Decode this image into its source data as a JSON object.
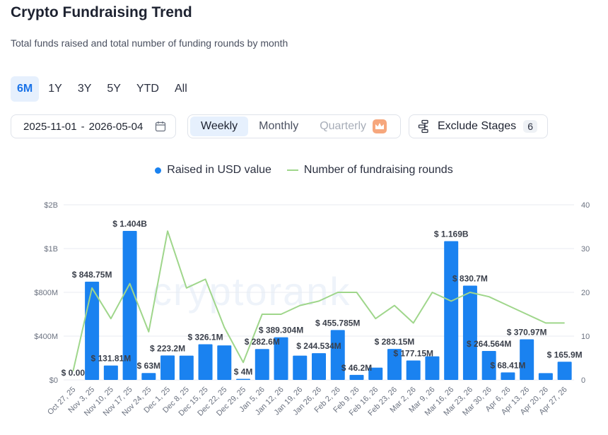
{
  "header": {
    "title": "Crypto Fundraising Trend",
    "subtitle": "Total funds raised and total number of funding rounds by month"
  },
  "range_tabs": [
    "6M",
    "1Y",
    "3Y",
    "5Y",
    "YTD",
    "All"
  ],
  "active_range": "6M",
  "date_range": {
    "start": "2025-11-01",
    "separator": "-",
    "end": "2026-05-04"
  },
  "period_tabs": {
    "weekly": "Weekly",
    "monthly": "Monthly",
    "quarterly": "Quarterly"
  },
  "active_period": "Weekly",
  "exclude": {
    "label": "Exclude Stages",
    "count": "6"
  },
  "legend": {
    "raised": "Raised in USD value",
    "rounds": "Number of fundraising rounds"
  },
  "watermark": "cryptorank",
  "colors": {
    "bar": "#1a82f0",
    "line": "#9fd68b",
    "accent": "#1a73e8",
    "grid": "#e8ebf0"
  },
  "chart_data": {
    "type": "bar",
    "categories": [
      "Oct 27, 25",
      "Nov 3, 25",
      "Nov 10, 25",
      "Nov 17, 25",
      "Nov 24, 25",
      "Dec 1, 25",
      "Dec 8, 25",
      "Dec 15, 25",
      "Dec 22, 25",
      "Dec 29, 25",
      "Jan 5, 26",
      "Jan 12, 26",
      "Jan 19, 26",
      "Jan 26, 26",
      "Feb 2, 26",
      "Feb 9, 26",
      "Feb 16, 26",
      "Feb 23, 26",
      "Mar 2, 26",
      "Mar 9, 26",
      "Mar 16, 26",
      "Mar 23, 26",
      "Mar 30, 26",
      "Apr 6, 26",
      "Apr 13, 26",
      "Apr 20, 26",
      "Apr 27, 26"
    ],
    "left_ticks": [
      "$0",
      "$400M",
      "$800M",
      "$1B",
      "$2B"
    ],
    "right_ticks": [
      "0",
      "10",
      "20",
      "30",
      "40"
    ],
    "series": [
      {
        "name": "Raised in USD value",
        "type": "bar",
        "values": [
          0,
          848.75,
          131.81,
          1404,
          63,
          223.2,
          222,
          326.1,
          315,
          4,
          282.6,
          389.304,
          222,
          244.534,
          455.785,
          46.2,
          112,
          283.15,
          177.15,
          215,
          1169,
          830.7,
          264.564,
          68.41,
          370.97,
          62,
          165.9
        ],
        "labels": [
          "$ 0.00",
          "$ 848.75M",
          "$ 131.81M",
          "$ 1.404B",
          "$ 63M",
          "$ 223.2M",
          "",
          "$ 326.1M",
          "",
          "$ 4M",
          "$ 282.6M",
          "$ 389.304M",
          "",
          "$ 244.534M",
          "$ 455.785M",
          "$ 46.2M",
          "",
          "$ 283.15M",
          "$ 177.15M",
          "",
          "$ 1.169B",
          "$ 830.7M",
          "$ 264.564M",
          "$ 68.41M",
          "$ 370.97M",
          "",
          "$ 165.9M"
        ]
      },
      {
        "name": "Number of fundraising rounds",
        "type": "line",
        "values": [
          2,
          21,
          14,
          22,
          11,
          34,
          21,
          23,
          12,
          4,
          15,
          15,
          17,
          18,
          20,
          20,
          14,
          17,
          13,
          20,
          18,
          20,
          19,
          17,
          15,
          13,
          13
        ]
      }
    ]
  }
}
